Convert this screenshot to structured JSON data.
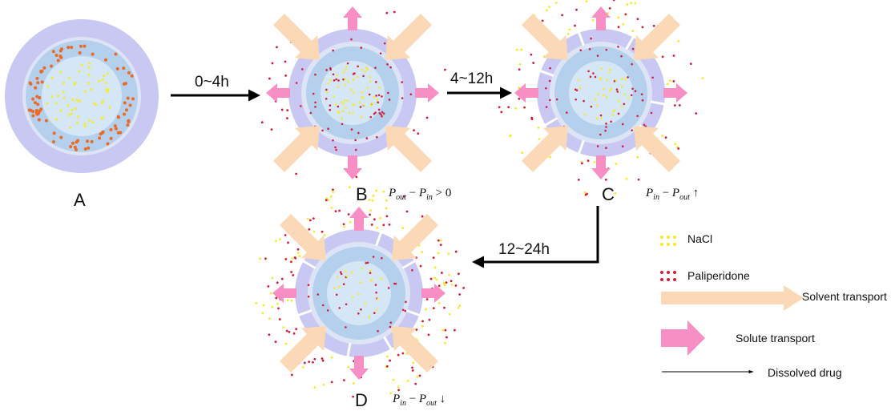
{
  "panels": {
    "a": {
      "letter": "A"
    },
    "b": {
      "letter": "B",
      "eq": {
        "p1": "P",
        "s1": "out",
        "op": " − ",
        "p2": "P",
        "s2": "in",
        "rel": " > 0"
      }
    },
    "c": {
      "letter": "C",
      "eq": {
        "p1": "P",
        "s1": "in",
        "op": " − ",
        "p2": "P",
        "s2": "out",
        "rel": " ↑"
      }
    },
    "d": {
      "letter": "D",
      "eq": {
        "p1": "P",
        "s1": "in",
        "op": " − ",
        "p2": "P",
        "s2": "out",
        "rel": " ↓"
      }
    }
  },
  "steps": [
    {
      "label": "0~4h"
    },
    {
      "label": "4~12h"
    },
    {
      "label": "12~24h"
    }
  ],
  "legend": {
    "nacl": "NaCl",
    "paliperidone": "Paliperidone",
    "solvent": "Solvent transport",
    "solute": "Solute transport",
    "dissolved": "Dissolved drug"
  },
  "colors": {
    "outer_coat": "#c9c8f2",
    "gap_ring": "#dde4f6",
    "drug_layer": "#b4d0ec",
    "core": "#d5e7f6",
    "nacl": "#f6ea2a",
    "paliperidone_a": "#ec6a25",
    "paliperidone": "#cf1f3c",
    "solvent_arrow": "#fbd9b6",
    "solute_arrow": "#f78fc4"
  },
  "icons": {
    "nacl": "yellow-dots-icon",
    "paliperidone": "red-dots-icon",
    "solvent": "peach-arrow-icon",
    "solute": "pink-arrow-icon",
    "dissolved": "thin-arrow-icon"
  }
}
